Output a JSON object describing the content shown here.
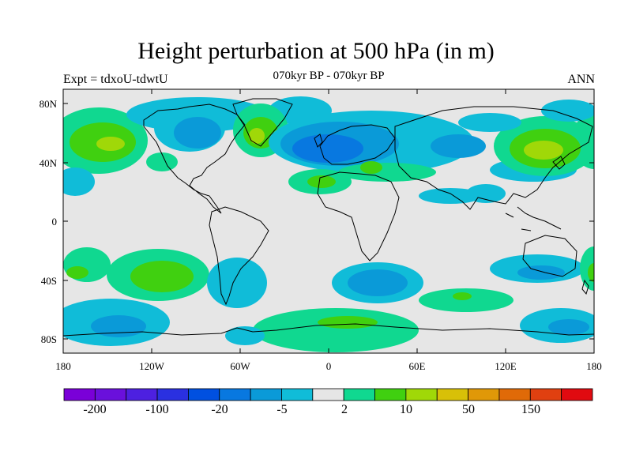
{
  "title": "Height perturbation at 500 hPa (in m)",
  "left_string": "Expt = tdxoU-tdwtU",
  "center_string": "070kyr BP - 070kyr BP",
  "right_string": "ANN",
  "map": {
    "projection": "cylindrical-equidistant",
    "lon_range": [
      -180,
      180
    ],
    "lat_range": [
      -90,
      90
    ],
    "background_color": "#e6e6e6",
    "y_ticks": [
      "80N",
      "40N",
      "0",
      "40S",
      "80S"
    ],
    "x_ticks": [
      "180",
      "120W",
      "60W",
      "0",
      "60E",
      "120E",
      "180"
    ]
  },
  "colorbar": {
    "colors": [
      "#7a00d8",
      "#6a10dc",
      "#4d20e0",
      "#2a30e0",
      "#0050e0",
      "#0878e0",
      "#0a9ad8",
      "#10bcd8",
      "#e6e6e6",
      "#10d890",
      "#40d010",
      "#a0d808",
      "#d8c008",
      "#e09808",
      "#e06a08",
      "#e04010",
      "#e00a10"
    ],
    "labels": [
      "-200",
      "-100",
      "-20",
      "-5",
      "2",
      "10",
      "50",
      "150"
    ]
  },
  "chart_data": {
    "type": "contour-map",
    "title": "Height perturbation at 500 hPa (in m)",
    "levels": [
      -200,
      -150,
      -100,
      -50,
      -20,
      -10,
      -5,
      -2,
      2,
      5,
      10,
      20,
      50,
      100,
      150,
      200
    ],
    "features": [
      {
        "region": "North Pacific ~50N 150W",
        "sign": "positive",
        "approx_value_m": 10
      },
      {
        "region": "Greenland ~65N 40W",
        "sign": "positive",
        "approx_value_m": 10
      },
      {
        "region": "North Atlantic / W Europe ~50N 10W",
        "sign": "negative",
        "approx_value_m": -20
      },
      {
        "region": "Eastern Canada / Arctic ~70N 80W",
        "sign": "negative",
        "approx_value_m": -5
      },
      {
        "region": "NE Asia ~50N 140E",
        "sign": "positive",
        "approx_value_m": 10
      },
      {
        "region": "Mediterranean / N Africa ~35N 20E",
        "sign": "positive",
        "approx_value_m": 5
      },
      {
        "region": "South Pacific ~40S 130W",
        "sign": "positive",
        "approx_value_m": 10
      },
      {
        "region": "South Atlantic ~45S 25E",
        "sign": "negative",
        "approx_value_m": -20
      },
      {
        "region": "Southern Ocean / Antarctica ~70S 20E",
        "sign": "positive",
        "approx_value_m": 5
      }
    ]
  }
}
